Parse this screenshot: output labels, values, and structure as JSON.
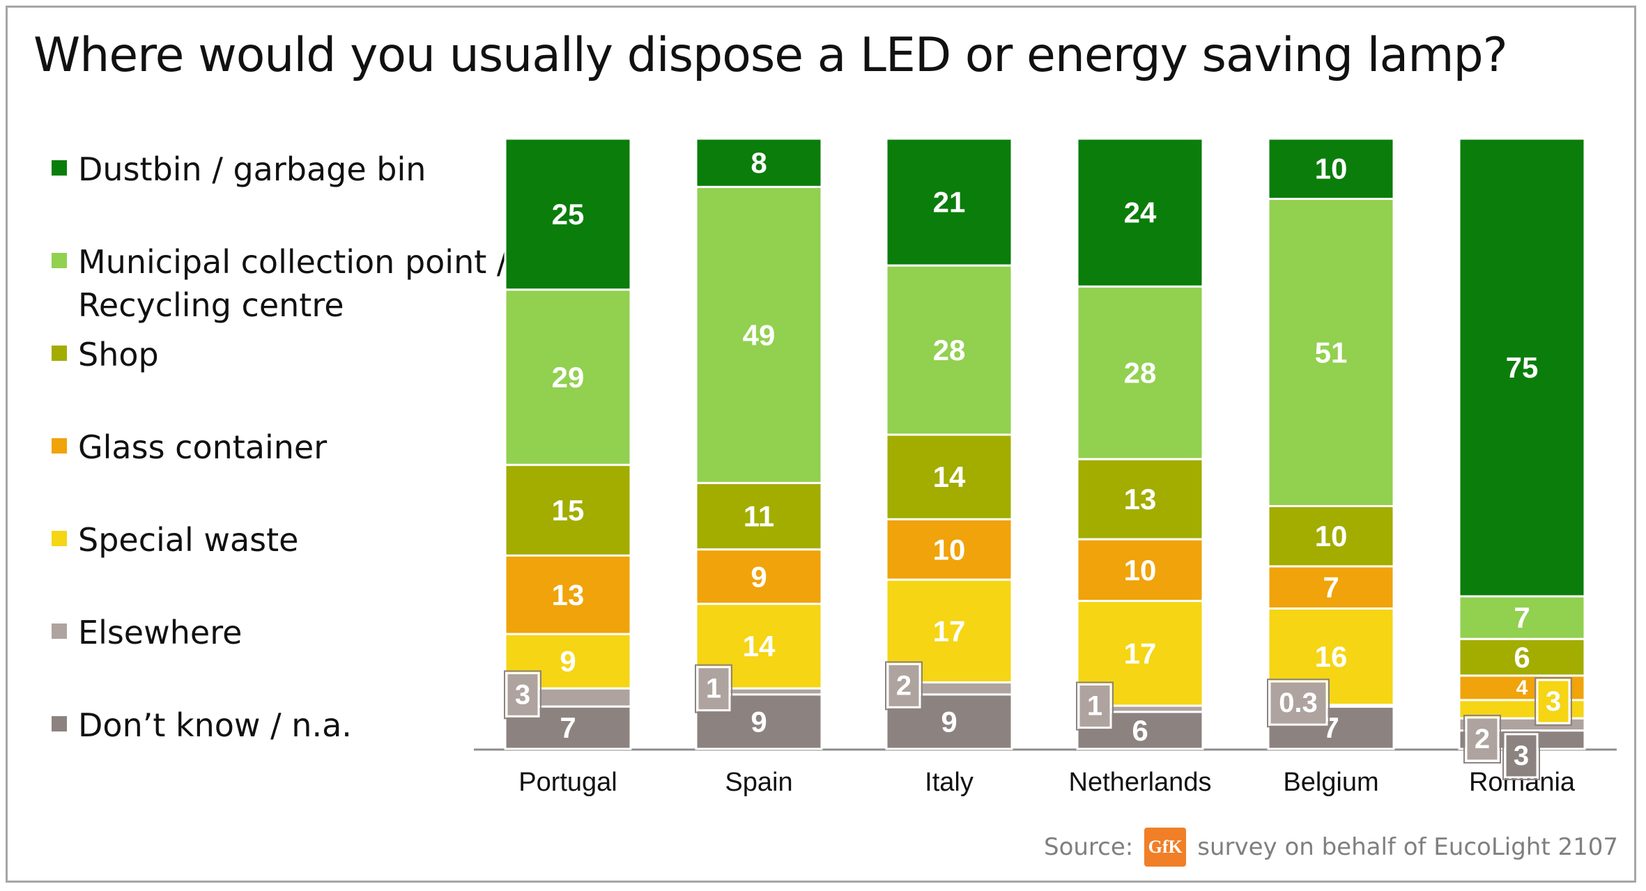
{
  "title": "Where would you usually dispose a LED or energy saving lamp?",
  "source": {
    "prefix": "Source:",
    "logo_text": "GfK",
    "suffix": "survey on behalf of EucoLight 2107"
  },
  "colors": {
    "dustbin": "#0b7d0b",
    "municipal": "#92d050",
    "shop": "#a2ad00",
    "glass": "#f0a30a",
    "special": "#f5d514",
    "elsewhere": "#aea39f",
    "dontknow": "#8c8380",
    "gfk": "#f07f27"
  },
  "chart_data": {
    "type": "bar",
    "stacked": true,
    "categories": [
      "Portugal",
      "Spain",
      "Italy",
      "Netherlands",
      "Belgium",
      "Romania"
    ],
    "ylim": [
      0,
      100
    ],
    "legend_position": "left",
    "series": [
      {
        "name": "Dustbin / garbage bin",
        "key": "dustbin",
        "values": [
          25,
          8,
          21,
          24,
          10,
          75
        ]
      },
      {
        "name": "Municipal collection point / Recycling centre",
        "key": "municipal",
        "values": [
          29,
          49,
          28,
          28,
          51,
          7
        ]
      },
      {
        "name": "Shop",
        "key": "shop",
        "values": [
          15,
          11,
          14,
          13,
          10,
          6
        ]
      },
      {
        "name": "Glass container",
        "key": "glass",
        "values": [
          13,
          9,
          10,
          10,
          7,
          4
        ]
      },
      {
        "name": "Special waste",
        "key": "special",
        "values": [
          9,
          14,
          17,
          17,
          16,
          3
        ]
      },
      {
        "name": "Elsewhere",
        "key": "elsewhere",
        "values": [
          3,
          1,
          2,
          1,
          0.3,
          2
        ]
      },
      {
        "name": "Don’t know / n.a.",
        "key": "dontknow",
        "values": [
          7,
          9,
          9,
          6,
          7,
          3
        ]
      }
    ],
    "value_labels": [
      [
        "25",
        "29",
        "15",
        "13",
        "9",
        "3",
        "7"
      ],
      [
        "8",
        "49",
        "11",
        "9",
        "14",
        "1",
        "9"
      ],
      [
        "21",
        "28",
        "14",
        "10",
        "17",
        "2",
        "9"
      ],
      [
        "24",
        "28",
        "13",
        "10",
        "17",
        "1",
        "6"
      ],
      [
        "10",
        "51",
        "10",
        "7",
        "16",
        "0.3",
        "7"
      ],
      [
        "75",
        "7",
        "6",
        "4",
        "3",
        "2",
        "3"
      ]
    ]
  }
}
